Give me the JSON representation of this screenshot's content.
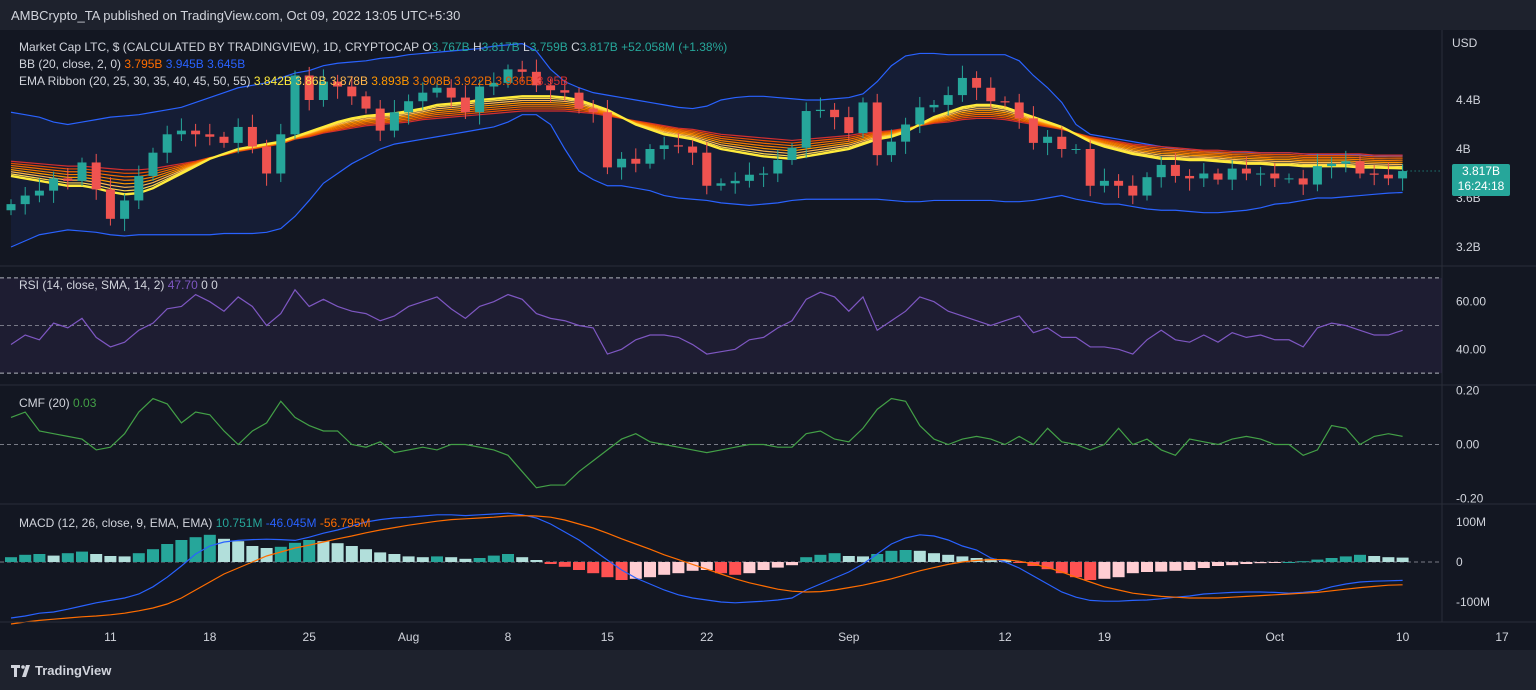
{
  "publisher": "AMBCrypto_TA published on TradingView.com, Oct 09, 2022 13:05 UTC+5:30",
  "brand": "TradingView",
  "price_pane": {
    "title": "Market Cap LTC, $ (CALCULATED BY TRADINGVIEW), 1D, CRYPTOCAP",
    "ohlc": {
      "o_label": "O",
      "o": "3.767B",
      "h_label": "H",
      "h": "3.817B",
      "l_label": "L",
      "l": "3.759B",
      "c_label": "C",
      "c": "3.817B",
      "change": "+52.058M (+1.38%)"
    },
    "bb": {
      "label": "BB (20, close, 2, 0)",
      "v1": "3.795B",
      "v2": "3.945B",
      "v3": "3.645B"
    },
    "ema": {
      "label": "EMA Ribbon (20, 25, 30, 35, 40, 45, 50, 55)",
      "values": [
        "3.842B",
        "3.86B",
        "3.878B",
        "3.893B",
        "3.908B",
        "3.922B",
        "3.936B",
        "3.95B"
      ],
      "colors": [
        "#ffeb3b",
        "#ffd54f",
        "#ffb74d",
        "#ff9800",
        "#f57c00",
        "#ef6c00",
        "#e65100",
        "#d32f2f"
      ]
    },
    "currency": "USD",
    "y_ticks": [
      "4.4B",
      "4B",
      "3.6B",
      "3.2B"
    ],
    "last_price": "3.817B",
    "countdown": "16:24:18"
  },
  "rsi_pane": {
    "label": "RSI (14, close, SMA, 14, 2)",
    "value": "47.70",
    "v2": "0",
    "v3": "0",
    "y_ticks": [
      "60.00",
      "40.00"
    ]
  },
  "cmf_pane": {
    "label": "CMF (20)",
    "value": "0.03",
    "y_ticks": [
      "0.20",
      "0.00",
      "-0.20"
    ]
  },
  "macd_pane": {
    "label": "MACD (12, 26, close, 9, EMA, EMA)",
    "hist": "10.751M",
    "macd": "-46.045M",
    "signal": "-56.795M",
    "y_ticks": [
      "100M",
      "0",
      "-100M"
    ]
  },
  "x_ticks": [
    "11",
    "18",
    "25",
    "Aug",
    "8",
    "15",
    "22",
    "Sep",
    "12",
    "19",
    "Oct",
    "10",
    "17"
  ],
  "colors": {
    "up": "#26a69a",
    "down": "#ef5350",
    "bb": "#2962ff",
    "rsi": "#7e57c2",
    "cmf": "#43a047",
    "macd": "#2962ff",
    "signal": "#ff6d00"
  },
  "chart_data": {
    "type": "candlestick",
    "interval": "1D",
    "x_range": [
      "2022-07-04",
      "2022-10-20"
    ],
    "x_tick_values": [
      "2022-07-11",
      "2022-07-18",
      "2022-07-25",
      "2022-08-01",
      "2022-08-08",
      "2022-08-15",
      "2022-08-22",
      "2022-09-01",
      "2022-09-12",
      "2022-09-19",
      "2022-10-01",
      "2022-10-10",
      "2022-10-17"
    ],
    "ylim": [
      3.0,
      5.0
    ],
    "close": [
      3.55,
      3.62,
      3.66,
      3.76,
      3.74,
      3.89,
      3.67,
      3.43,
      3.58,
      3.78,
      3.97,
      4.12,
      4.15,
      4.12,
      4.1,
      4.05,
      4.18,
      4.02,
      3.8,
      4.12,
      4.6,
      4.4,
      4.55,
      4.51,
      4.43,
      4.33,
      4.15,
      4.3,
      4.39,
      4.46,
      4.5,
      4.42,
      4.3,
      4.51,
      4.54,
      4.65,
      4.63,
      4.52,
      4.48,
      4.46,
      4.33,
      4.3,
      3.85,
      3.92,
      3.88,
      4.0,
      4.03,
      4.02,
      3.97,
      3.7,
      3.72,
      3.74,
      3.79,
      3.8,
      3.91,
      4.01,
      4.31,
      4.32,
      4.26,
      4.13,
      4.38,
      3.95,
      4.06,
      4.2,
      4.34,
      4.36,
      4.44,
      4.58,
      4.5,
      4.39,
      4.38,
      4.25,
      4.05,
      4.1,
      4.0,
      4.0,
      3.7,
      3.74,
      3.7,
      3.62,
      3.77,
      3.87,
      3.78,
      3.76,
      3.8,
      3.75,
      3.84,
      3.8,
      3.8,
      3.76,
      3.76,
      3.71,
      3.86,
      3.88,
      3.9,
      3.8,
      3.79,
      3.76,
      3.82
    ],
    "bb_upper": [
      4.3,
      4.28,
      4.26,
      4.22,
      4.2,
      4.22,
      4.24,
      4.26,
      4.27,
      4.28,
      4.3,
      4.32,
      4.34,
      4.38,
      4.42,
      4.46,
      4.5,
      4.52,
      4.54,
      4.58,
      4.62,
      4.64,
      4.68,
      4.7,
      4.71,
      4.72,
      4.74,
      4.75,
      4.77,
      4.78,
      4.79,
      4.8,
      4.81,
      4.82,
      4.84,
      4.85,
      4.86,
      4.8,
      4.65,
      4.55,
      4.5,
      4.46,
      4.44,
      4.42,
      4.4,
      4.38,
      4.36,
      4.34,
      4.33,
      4.35,
      4.4,
      4.42,
      4.43,
      4.43,
      4.42,
      4.41,
      4.4,
      4.4,
      4.41,
      4.42,
      4.45,
      4.55,
      4.68,
      4.76,
      4.78,
      4.78,
      4.77,
      4.77,
      4.77,
      4.77,
      4.77,
      4.72,
      4.6,
      4.5,
      4.38,
      4.2,
      4.12,
      4.1,
      4.08,
      4.06,
      4.04,
      4.02,
      4.0,
      3.99,
      3.98,
      3.97,
      3.97,
      3.97,
      3.97,
      3.97,
      3.97,
      3.96,
      3.95,
      3.95,
      3.95,
      3.95,
      3.94,
      3.945,
      3.945
    ],
    "bb_lower": [
      3.2,
      3.25,
      3.3,
      3.32,
      3.34,
      3.33,
      3.32,
      3.3,
      3.29,
      3.3,
      3.3,
      3.3,
      3.3,
      3.3,
      3.3,
      3.31,
      3.31,
      3.31,
      3.32,
      3.35,
      3.45,
      3.58,
      3.72,
      3.8,
      3.88,
      3.94,
      4.0,
      4.04,
      4.06,
      4.08,
      4.1,
      4.12,
      4.14,
      4.16,
      4.18,
      4.22,
      4.28,
      4.28,
      4.2,
      4.0,
      3.82,
      3.75,
      3.7,
      3.7,
      3.68,
      3.66,
      3.62,
      3.6,
      3.59,
      3.58,
      3.56,
      3.55,
      3.54,
      3.55,
      3.56,
      3.58,
      3.59,
      3.59,
      3.59,
      3.59,
      3.59,
      3.59,
      3.58,
      3.57,
      3.57,
      3.58,
      3.58,
      3.58,
      3.58,
      3.58,
      3.57,
      3.57,
      3.58,
      3.6,
      3.62,
      3.59,
      3.57,
      3.55,
      3.55,
      3.53,
      3.51,
      3.5,
      3.5,
      3.49,
      3.48,
      3.48,
      3.49,
      3.5,
      3.52,
      3.55,
      3.56,
      3.58,
      3.6,
      3.6,
      3.61,
      3.62,
      3.63,
      3.64,
      3.645
    ],
    "ema20": [
      3.78,
      3.76,
      3.74,
      3.72,
      3.7,
      3.7,
      3.68,
      3.65,
      3.63,
      3.64,
      3.68,
      3.74,
      3.8,
      3.86,
      3.92,
      3.96,
      4.0,
      4.02,
      4.04,
      4.06,
      4.1,
      4.14,
      4.18,
      4.22,
      4.25,
      4.27,
      4.28,
      4.29,
      4.31,
      4.33,
      4.36,
      4.37,
      4.38,
      4.4,
      4.41,
      4.42,
      4.43,
      4.43,
      4.43,
      4.42,
      4.4,
      4.36,
      4.32,
      4.26,
      4.2,
      4.16,
      4.12,
      4.1,
      4.08,
      4.04,
      4.0,
      3.98,
      3.96,
      3.94,
      3.93,
      3.92,
      3.94,
      3.96,
      3.98,
      4.0,
      4.04,
      4.08,
      4.1,
      4.14,
      4.2,
      4.26,
      4.3,
      4.34,
      4.36,
      4.36,
      4.34,
      4.3,
      4.26,
      4.22,
      4.18,
      4.12,
      4.06,
      4.02,
      3.99,
      3.96,
      3.94,
      3.92,
      3.92,
      3.91,
      3.91,
      3.9,
      3.89,
      3.88,
      3.88,
      3.87,
      3.87,
      3.86,
      3.86,
      3.86,
      3.86,
      3.85,
      3.85,
      3.845,
      3.842
    ],
    "ema55": [
      3.9,
      3.89,
      3.88,
      3.87,
      3.86,
      3.86,
      3.85,
      3.84,
      3.83,
      3.83,
      3.84,
      3.86,
      3.88,
      3.9,
      3.93,
      3.95,
      3.98,
      4.0,
      4.02,
      4.04,
      4.08,
      4.1,
      4.13,
      4.15,
      4.17,
      4.19,
      4.2,
      4.21,
      4.22,
      4.24,
      4.25,
      4.26,
      4.27,
      4.28,
      4.29,
      4.3,
      4.31,
      4.31,
      4.31,
      4.31,
      4.3,
      4.29,
      4.27,
      4.25,
      4.23,
      4.21,
      4.19,
      4.17,
      4.16,
      4.14,
      4.12,
      4.11,
      4.1,
      4.09,
      4.08,
      4.07,
      4.08,
      4.09,
      4.1,
      4.11,
      4.13,
      4.14,
      4.15,
      4.17,
      4.19,
      4.21,
      4.22,
      4.24,
      4.25,
      4.25,
      4.24,
      4.22,
      4.2,
      4.18,
      4.16,
      4.13,
      4.1,
      4.08,
      4.06,
      4.04,
      4.03,
      4.02,
      4.01,
      4.0,
      3.99,
      3.99,
      3.98,
      3.98,
      3.97,
      3.97,
      3.97,
      3.96,
      3.96,
      3.96,
      3.96,
      3.96,
      3.95,
      3.95,
      3.95
    ],
    "rsi": [
      42,
      46,
      44,
      51,
      49,
      53,
      45,
      41,
      43,
      48,
      51,
      57,
      58,
      63,
      60,
      56,
      62,
      58,
      50,
      55,
      65,
      58,
      61,
      58,
      56,
      55,
      52,
      54,
      58,
      60,
      62,
      57,
      53,
      58,
      60,
      63,
      61,
      55,
      53,
      52,
      50,
      49,
      38,
      40,
      44,
      46,
      46,
      45,
      42,
      38,
      39,
      40,
      44,
      45,
      49,
      52,
      61,
      64,
      62,
      56,
      62,
      48,
      52,
      56,
      62,
      60,
      56,
      54,
      52,
      50,
      52,
      54,
      47,
      49,
      45,
      45,
      41,
      41,
      40,
      38,
      44,
      48,
      44,
      43,
      46,
      43,
      47,
      45,
      46,
      44,
      44,
      41,
      49,
      51,
      50,
      48,
      46,
      46,
      48
    ],
    "rsi_ylim": [
      25,
      75
    ],
    "cmf": [
      0.1,
      0.12,
      0.05,
      0.04,
      0.03,
      0.02,
      -0.02,
      -0.01,
      0.04,
      0.12,
      0.17,
      0.15,
      0.08,
      0.12,
      0.11,
      0.05,
      0.0,
      0.05,
      0.08,
      0.16,
      0.1,
      0.07,
      0.05,
      0.05,
      0.0,
      -0.01,
      0.01,
      -0.03,
      -0.02,
      -0.01,
      -0.02,
      0.0,
      0.0,
      -0.01,
      -0.02,
      -0.04,
      -0.1,
      -0.16,
      -0.15,
      -0.15,
      -0.1,
      -0.06,
      -0.02,
      0.02,
      0.04,
      0.01,
      0.0,
      -0.01,
      -0.02,
      -0.03,
      -0.02,
      -0.01,
      0.0,
      0.0,
      -0.01,
      -0.01,
      0.04,
      0.05,
      0.02,
      0.01,
      0.06,
      0.13,
      0.17,
      0.16,
      0.07,
      0.02,
      0.0,
      0.02,
      0.03,
      0.02,
      0.0,
      0.03,
      0.0,
      0.06,
      0.01,
      0.0,
      -0.02,
      0.0,
      0.06,
      0.0,
      0.02,
      -0.02,
      -0.04,
      0.02,
      0.01,
      0.0,
      0.02,
      0.03,
      0.02,
      0.0,
      0.0,
      -0.04,
      -0.02,
      0.07,
      0.06,
      0.0,
      0.03,
      0.04,
      0.03
    ],
    "cmf_ylim": [
      -0.22,
      0.22
    ],
    "macd_hist": [
      12,
      18,
      20,
      16,
      22,
      26,
      20,
      15,
      14,
      22,
      32,
      45,
      55,
      62,
      68,
      58,
      52,
      40,
      35,
      38,
      48,
      55,
      52,
      47,
      40,
      32,
      24,
      20,
      14,
      12,
      14,
      12,
      8,
      10,
      16,
      20,
      12,
      5,
      -5,
      -12,
      -20,
      -28,
      -38,
      -45,
      -42,
      -38,
      -32,
      -28,
      -22,
      -20,
      -28,
      -32,
      -28,
      -20,
      -14,
      -8,
      12,
      18,
      22,
      15,
      14,
      20,
      28,
      30,
      28,
      22,
      18,
      14,
      10,
      8,
      5,
      -2,
      -10,
      -18,
      -28,
      -38,
      -45,
      -42,
      -38,
      -28,
      -25,
      -24,
      -22,
      -20,
      -15,
      -10,
      -8,
      -5,
      -3,
      -2,
      0,
      2,
      6,
      10,
      14,
      18,
      15,
      12,
      11
    ],
    "macd_line": [
      -140,
      -135,
      -128,
      -125,
      -118,
      -110,
      -102,
      -96,
      -90,
      -80,
      -62,
      -38,
      -10,
      20,
      40,
      50,
      54,
      56,
      57,
      56,
      54,
      62,
      72,
      80,
      90,
      100,
      106,
      110,
      112,
      115,
      118,
      118,
      116,
      118,
      120,
      122,
      118,
      110,
      95,
      75,
      55,
      30,
      5,
      -20,
      -40,
      -55,
      -70,
      -82,
      -90,
      -95,
      -100,
      -102,
      -100,
      -98,
      -95,
      -90,
      -70,
      -55,
      -40,
      -25,
      -5,
      20,
      45,
      60,
      68,
      65,
      55,
      40,
      30,
      10,
      0,
      -15,
      -35,
      -55,
      -75,
      -88,
      -96,
      -98,
      -98,
      -96,
      -95,
      -92,
      -88,
      -85,
      -80,
      -78,
      -76,
      -75,
      -75,
      -76,
      -78,
      -76,
      -72,
      -62,
      -55,
      -50,
      -48,
      -47,
      -46
    ],
    "macd_signal": [
      -155,
      -150,
      -146,
      -143,
      -140,
      -137,
      -135,
      -132,
      -128,
      -122,
      -115,
      -105,
      -90,
      -70,
      -50,
      -30,
      -15,
      0,
      15,
      25,
      35,
      42,
      50,
      58,
      65,
      73,
      80,
      86,
      92,
      97,
      102,
      106,
      108,
      110,
      112,
      115,
      116,
      115,
      112,
      105,
      95,
      85,
      72,
      58,
      45,
      32,
      18,
      6,
      -6,
      -18,
      -30,
      -42,
      -52,
      -60,
      -68,
      -73,
      -75,
      -74,
      -70,
      -64,
      -58,
      -50,
      -42,
      -32,
      -22,
      -14,
      -6,
      0,
      4,
      6,
      6,
      2,
      -5,
      -14,
      -25,
      -38,
      -50,
      -62,
      -70,
      -78,
      -82,
      -86,
      -88,
      -90,
      -90,
      -90,
      -88,
      -86,
      -84,
      -82,
      -80,
      -78,
      -76,
      -72,
      -68,
      -64,
      -61,
      -58,
      -57
    ],
    "macd_ylim": [
      -150,
      145
    ]
  }
}
